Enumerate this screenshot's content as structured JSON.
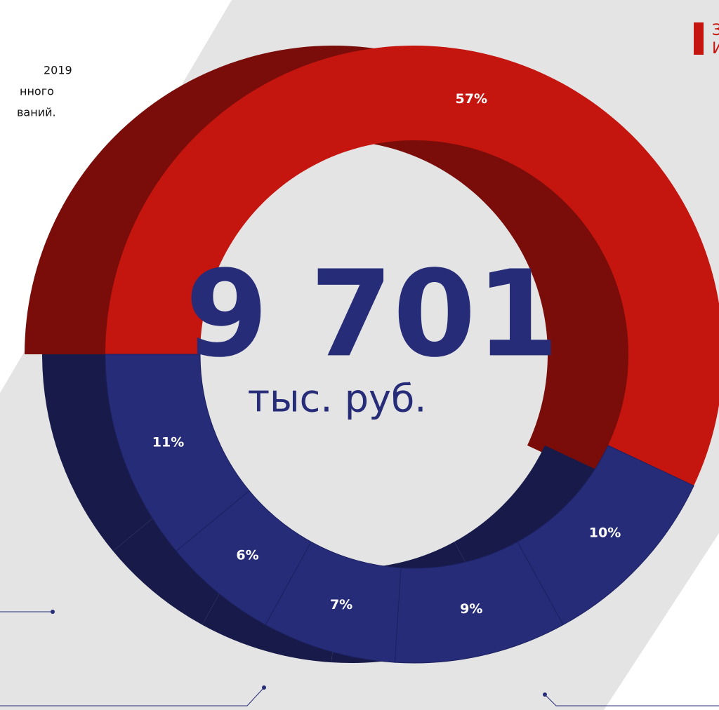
{
  "chart_data": {
    "type": "donut",
    "values": [
      57,
      10,
      9,
      7,
      6,
      11
    ],
    "value_labels": [
      "57%",
      "10%",
      "9%",
      "7%",
      "6%",
      "11%"
    ],
    "colors": [
      "#c4150f",
      "#262c78",
      "#262c78",
      "#262c78",
      "#262c78",
      "#262c78"
    ],
    "total_label": "9 701",
    "total_unit": "тыс. руб.",
    "annotations": [
      "2019",
      "нного",
      "ваний.",
      "З",
      "И"
    ]
  }
}
